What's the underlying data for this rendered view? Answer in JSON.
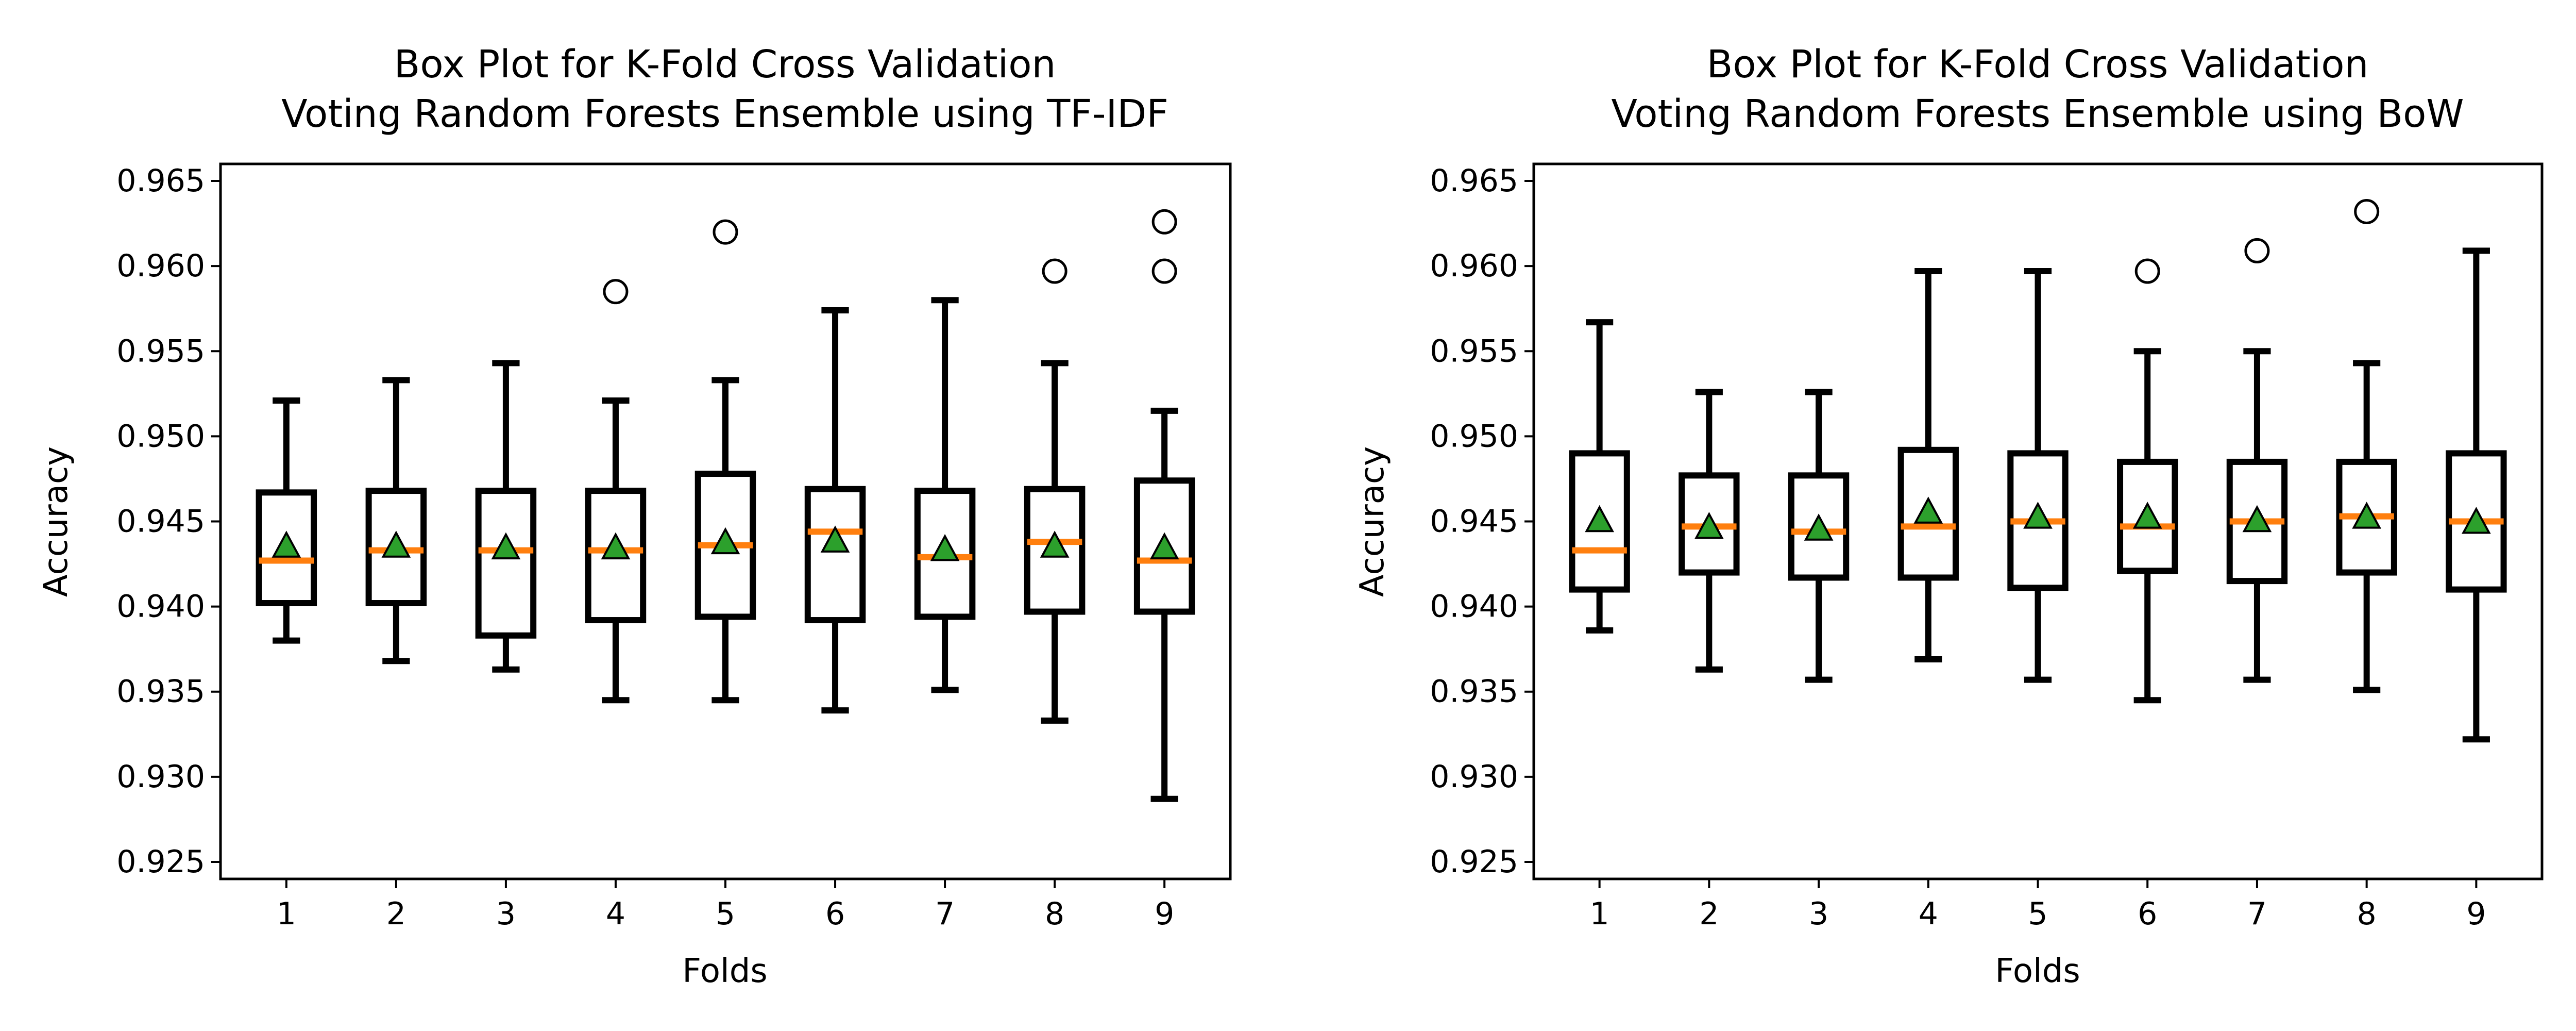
{
  "colors": {
    "box": "#000000",
    "median": "#ff7f0e",
    "mean_fill": "#2ca02c",
    "mean_edge": "#000000",
    "flier": "#000000",
    "background": "#ffffff"
  },
  "chart_data": [
    {
      "type": "box",
      "title": "Box Plot for K-Fold Cross Validation\nVoting Random Forests Ensemble using TF-IDF",
      "title_lines": [
        "Box Plot for K-Fold Cross Validation",
        "Voting Random Forests Ensemble using TF-IDF"
      ],
      "xlabel": "Folds",
      "ylabel": "Accuracy",
      "ylim": [
        0.924,
        0.966
      ],
      "yticks": [
        0.925,
        0.93,
        0.935,
        0.94,
        0.945,
        0.95,
        0.955,
        0.96,
        0.965
      ],
      "ytick_labels": [
        "0.925",
        "0.930",
        "0.935",
        "0.940",
        "0.945",
        "0.950",
        "0.955",
        "0.960",
        "0.965"
      ],
      "categories": [
        "1",
        "2",
        "3",
        "4",
        "5",
        "6",
        "7",
        "8",
        "9"
      ],
      "grid": false,
      "boxes": [
        {
          "whislo": 0.938,
          "q1": 0.9402,
          "med": 0.9427,
          "q3": 0.9467,
          "whishi": 0.9521,
          "mean": 0.9435,
          "fliers": []
        },
        {
          "whislo": 0.9368,
          "q1": 0.9402,
          "med": 0.9433,
          "q3": 0.9468,
          "whishi": 0.9533,
          "mean": 0.9435,
          "fliers": []
        },
        {
          "whislo": 0.9363,
          "q1": 0.9383,
          "med": 0.9433,
          "q3": 0.9468,
          "whishi": 0.9543,
          "mean": 0.9434,
          "fliers": []
        },
        {
          "whislo": 0.9345,
          "q1": 0.9392,
          "med": 0.9433,
          "q3": 0.9468,
          "whishi": 0.9521,
          "mean": 0.9434,
          "fliers": [
            0.9585
          ]
        },
        {
          "whislo": 0.9345,
          "q1": 0.9394,
          "med": 0.9436,
          "q3": 0.9478,
          "whishi": 0.9533,
          "mean": 0.9437,
          "fliers": [
            0.962
          ]
        },
        {
          "whislo": 0.9339,
          "q1": 0.9392,
          "med": 0.9444,
          "q3": 0.9469,
          "whishi": 0.9574,
          "mean": 0.9438,
          "fliers": []
        },
        {
          "whislo": 0.9351,
          "q1": 0.9394,
          "med": 0.9429,
          "q3": 0.9468,
          "whishi": 0.958,
          "mean": 0.9433,
          "fliers": []
        },
        {
          "whislo": 0.9333,
          "q1": 0.9397,
          "med": 0.9438,
          "q3": 0.9469,
          "whishi": 0.9543,
          "mean": 0.9435,
          "fliers": [
            0.9597
          ]
        },
        {
          "whislo": 0.9287,
          "q1": 0.9397,
          "med": 0.9427,
          "q3": 0.9474,
          "whishi": 0.9515,
          "mean": 0.9434,
          "fliers": [
            0.9597,
            0.9626
          ]
        }
      ]
    },
    {
      "type": "box",
      "title": "Box Plot for K-Fold Cross Validation\nVoting Random Forests Ensemble using BoW",
      "title_lines": [
        "Box Plot for K-Fold Cross Validation",
        "Voting Random Forests Ensemble using BoW"
      ],
      "xlabel": "Folds",
      "ylabel": "Accuracy",
      "ylim": [
        0.924,
        0.966
      ],
      "yticks": [
        0.925,
        0.93,
        0.935,
        0.94,
        0.945,
        0.95,
        0.955,
        0.96,
        0.965
      ],
      "ytick_labels": [
        "0.925",
        "0.930",
        "0.935",
        "0.940",
        "0.945",
        "0.950",
        "0.955",
        "0.960",
        "0.965"
      ],
      "categories": [
        "1",
        "2",
        "3",
        "4",
        "5",
        "6",
        "7",
        "8",
        "9"
      ],
      "grid": false,
      "boxes": [
        {
          "whislo": 0.9386,
          "q1": 0.941,
          "med": 0.9433,
          "q3": 0.949,
          "whishi": 0.9567,
          "mean": 0.945,
          "fliers": []
        },
        {
          "whislo": 0.9363,
          "q1": 0.942,
          "med": 0.9447,
          "q3": 0.9477,
          "whishi": 0.9526,
          "mean": 0.9446,
          "fliers": []
        },
        {
          "whislo": 0.9357,
          "q1": 0.9417,
          "med": 0.9444,
          "q3": 0.9477,
          "whishi": 0.9526,
          "mean": 0.9445,
          "fliers": []
        },
        {
          "whislo": 0.9369,
          "q1": 0.9417,
          "med": 0.9447,
          "q3": 0.9492,
          "whishi": 0.9597,
          "mean": 0.9455,
          "fliers": []
        },
        {
          "whislo": 0.9357,
          "q1": 0.9411,
          "med": 0.945,
          "q3": 0.949,
          "whishi": 0.9597,
          "mean": 0.9452,
          "fliers": []
        },
        {
          "whislo": 0.9345,
          "q1": 0.9421,
          "med": 0.9447,
          "q3": 0.9485,
          "whishi": 0.955,
          "mean": 0.9452,
          "fliers": [
            0.9597
          ]
        },
        {
          "whislo": 0.9357,
          "q1": 0.9415,
          "med": 0.945,
          "q3": 0.9485,
          "whishi": 0.955,
          "mean": 0.945,
          "fliers": [
            0.9609
          ]
        },
        {
          "whislo": 0.9351,
          "q1": 0.942,
          "med": 0.9453,
          "q3": 0.9485,
          "whishi": 0.9543,
          "mean": 0.9452,
          "fliers": [
            0.9632
          ]
        },
        {
          "whislo": 0.9322,
          "q1": 0.941,
          "med": 0.945,
          "q3": 0.949,
          "whishi": 0.9609,
          "mean": 0.9449,
          "fliers": []
        }
      ]
    }
  ]
}
